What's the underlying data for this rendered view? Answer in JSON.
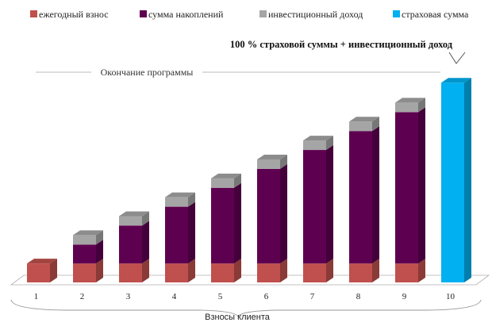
{
  "chart_data": {
    "type": "bar",
    "stacked": true,
    "categories": [
      "1",
      "2",
      "3",
      "4",
      "5",
      "6",
      "7",
      "8",
      "9",
      "10"
    ],
    "xlabel": "Взносы клиента",
    "annotation": "100 % страховой суммы + инвестиционный доход",
    "end_label": "Окончание программы",
    "ylim": [
      0,
      100
    ],
    "legend_position": "top",
    "grid": false,
    "series": [
      {
        "name": "ежегодный взнос",
        "color": "#c0504d",
        "values": [
          9,
          9,
          9,
          9,
          9,
          9,
          9,
          9,
          9,
          0
        ]
      },
      {
        "name": "сумма накоплений",
        "color": "#5e0050",
        "values": [
          0,
          9,
          18,
          27,
          36,
          45,
          54,
          63,
          72,
          0
        ]
      },
      {
        "name": "инвестиционный доход",
        "color": "#a5a5a5",
        "values": [
          0,
          4.5,
          4.5,
          4.5,
          4.5,
          4.5,
          4.5,
          4.5,
          4.5,
          0
        ]
      },
      {
        "name": "страховая сумма",
        "color": "#00b0f0",
        "values": [
          0,
          0,
          0,
          0,
          0,
          0,
          0,
          0,
          0,
          95
        ]
      }
    ]
  }
}
